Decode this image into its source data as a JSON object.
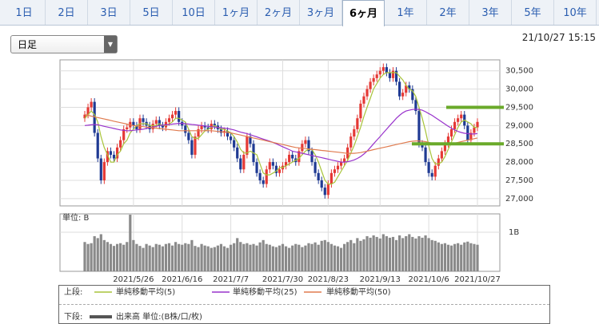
{
  "tabs": [
    "1日",
    "2日",
    "3日",
    "5日",
    "10日",
    "1ヶ月",
    "2ヶ月",
    "3ヶ月",
    "6ヶ月",
    "1年",
    "2年",
    "3年",
    "5年",
    "10年"
  ],
  "active_tab": 8,
  "period_select": "日足",
  "timestamp": "21/10/27 15:15",
  "legend": {
    "upper": "上段:",
    "lower": "下段:"
  },
  "chart_data": [
    {
      "type": "candlestick",
      "categories": [
        null,
        null,
        null,
        null,
        null,
        null,
        null,
        null,
        null,
        null,
        null,
        null,
        null,
        null,
        null,
        "2021/5/26",
        null,
        null,
        null,
        null,
        null,
        null,
        null,
        null,
        null,
        null,
        null,
        null,
        null,
        null,
        "2021/6/16",
        null,
        null,
        null,
        null,
        null,
        null,
        null,
        null,
        null,
        null,
        null,
        null,
        null,
        null,
        "2021/7/7",
        null,
        null,
        null,
        null,
        null,
        null,
        null,
        null,
        null,
        null,
        null,
        null,
        null,
        null,
        null,
        "2021/7/30",
        null,
        null,
        null,
        null,
        null,
        null,
        null,
        null,
        null,
        null,
        null,
        null,
        null,
        "2021/8/23",
        null,
        null,
        null,
        null,
        null,
        null,
        null,
        null,
        null,
        null,
        null,
        null,
        null,
        null,
        null,
        "2021/9/13",
        null,
        null,
        null,
        null,
        null,
        null,
        null,
        null,
        null,
        null,
        null,
        null,
        null,
        null,
        "2021/10/6",
        null,
        null,
        null,
        null,
        null,
        null,
        null,
        null,
        null,
        null,
        null,
        null,
        null,
        null,
        "2021/10/27"
      ],
      "open": [
        29200,
        29300,
        29500,
        29650,
        28800,
        28100,
        27500,
        28000,
        28300,
        28200,
        28100,
        28400,
        28600,
        28900,
        28950,
        29100,
        29000,
        28900,
        29200,
        29100,
        29000,
        28900,
        29050,
        29150,
        29000,
        28950,
        29100,
        29200,
        29300,
        29400,
        29100,
        29000,
        28800,
        28600,
        28200,
        28700,
        28900,
        29000,
        28950,
        28900,
        29050,
        29000,
        28900,
        28800,
        28850,
        28700,
        28600,
        28400,
        28100,
        27800,
        28200,
        28700,
        28500,
        28000,
        27700,
        27500,
        27400,
        27800,
        28000,
        27900,
        27700,
        27800,
        27900,
        28000,
        28200,
        28100,
        28000,
        28300,
        28500,
        28600,
        28300,
        28000,
        27700,
        27500,
        27300,
        27100,
        27400,
        27700,
        27800,
        27900,
        28000,
        28100,
        28400,
        28700,
        28900,
        29200,
        29600,
        29800,
        30000,
        30200,
        30300,
        30400,
        30500,
        30600,
        30450,
        30300,
        30500,
        30200,
        29800,
        29900,
        30100,
        30000,
        29700,
        29400,
        28500,
        28400,
        28000,
        27700,
        27600,
        27900,
        28100,
        28300,
        28500,
        28700,
        28900,
        29100,
        29200,
        29300,
        29000,
        28600,
        28800,
        28950
      ],
      "high": [
        29400,
        29600,
        29750,
        29750,
        28900,
        28200,
        28100,
        28400,
        28400,
        28300,
        28500,
        28700,
        29000,
        29050,
        29200,
        29200,
        29100,
        29300,
        29300,
        29200,
        29100,
        29150,
        29250,
        29250,
        29100,
        29200,
        29300,
        29400,
        29500,
        29500,
        29200,
        29100,
        28900,
        28700,
        28800,
        29000,
        29100,
        29100,
        29050,
        29150,
        29150,
        29100,
        29000,
        28950,
        28950,
        28800,
        28700,
        28500,
        28200,
        28300,
        28800,
        28800,
        28600,
        28100,
        27800,
        27600,
        27900,
        28100,
        28100,
        28000,
        27900,
        28000,
        28100,
        28300,
        28300,
        28200,
        28400,
        28600,
        28700,
        28700,
        28400,
        28100,
        27800,
        27600,
        27400,
        27500,
        27800,
        27900,
        28000,
        28100,
        28200,
        28500,
        28800,
        29000,
        29300,
        29700,
        29900,
        30100,
        30300,
        30400,
        30500,
        30600,
        30700,
        30700,
        30550,
        30600,
        30600,
        30300,
        30000,
        30200,
        30200,
        30100,
        29800,
        29500,
        28600,
        28500,
        28100,
        27800,
        28000,
        28200,
        28400,
        28600,
        28800,
        29000,
        29200,
        29300,
        29400,
        29400,
        29100,
        28900,
        29050,
        29200
      ],
      "low": [
        29100,
        29200,
        29400,
        28700,
        28000,
        27400,
        27400,
        27900,
        28100,
        28000,
        28000,
        28300,
        28500,
        28800,
        28850,
        28900,
        28800,
        28800,
        29000,
        28900,
        28800,
        28800,
        28950,
        28900,
        28850,
        28850,
        29000,
        29100,
        29200,
        29000,
        28900,
        28700,
        28500,
        28100,
        28100,
        28600,
        28800,
        28850,
        28800,
        28800,
        28900,
        28800,
        28700,
        28700,
        28600,
        28500,
        28300,
        28000,
        27700,
        27700,
        28100,
        28400,
        27900,
        27600,
        27400,
        27300,
        27300,
        27700,
        27800,
        27600,
        27600,
        27700,
        27800,
        27900,
        28000,
        27900,
        27900,
        28200,
        28400,
        28200,
        27900,
        27600,
        27400,
        27200,
        27000,
        27000,
        27300,
        27600,
        27700,
        27800,
        27900,
        28000,
        28300,
        28600,
        28800,
        29100,
        29500,
        29700,
        29900,
        30100,
        30200,
        30300,
        30400,
        30350,
        30200,
        30200,
        30100,
        29700,
        29700,
        29800,
        29900,
        29600,
        29300,
        28400,
        28300,
        27900,
        27600,
        27500,
        27500,
        27800,
        28000,
        28200,
        28400,
        28600,
        28800,
        29000,
        29100,
        28900,
        28500,
        28500,
        28700,
        28850
      ],
      "close": [
        29300,
        29500,
        29650,
        28800,
        28100,
        27500,
        28000,
        28300,
        28200,
        28100,
        28400,
        28600,
        28900,
        28950,
        29100,
        29000,
        28900,
        29200,
        29100,
        29000,
        28900,
        29050,
        29150,
        29000,
        28950,
        29100,
        29200,
        29300,
        29400,
        29100,
        29000,
        28800,
        28600,
        28200,
        28700,
        28900,
        29000,
        28950,
        28900,
        29050,
        29000,
        28900,
        28800,
        28850,
        28700,
        28600,
        28400,
        28100,
        27800,
        28200,
        28700,
        28500,
        28000,
        27700,
        27500,
        27400,
        27800,
        28000,
        27900,
        27700,
        27800,
        27900,
        28000,
        28200,
        28100,
        28000,
        28300,
        28500,
        28600,
        28300,
        28000,
        27700,
        27500,
        27300,
        27100,
        27400,
        27700,
        27800,
        27900,
        28000,
        28100,
        28400,
        28700,
        28900,
        29200,
        29600,
        29800,
        30000,
        30200,
        30300,
        30400,
        30500,
        30600,
        30450,
        30300,
        30500,
        30200,
        29800,
        29900,
        30100,
        30000,
        29700,
        29400,
        28500,
        28400,
        28000,
        27700,
        27600,
        27900,
        28100,
        28300,
        28500,
        28700,
        28900,
        29100,
        29200,
        29300,
        29000,
        28600,
        28800,
        28950,
        29100
      ],
      "up_color": "#e53935",
      "down_color": "#1f3a93",
      "series": [
        {
          "name": "単純移動平均(5)",
          "color": "#a8c43a",
          "values": [
            29200,
            29300,
            29400,
            29300,
            29100,
            28700,
            28400,
            28200,
            28000,
            28000,
            28200,
            28300,
            28500,
            28600,
            28800,
            28900,
            29000,
            29050,
            29050,
            29050,
            29000,
            29000,
            29000,
            29050,
            29000,
            29000,
            29050,
            29100,
            29200,
            29200,
            29150,
            29100,
            28900,
            28700,
            28650,
            28650,
            28750,
            28850,
            28900,
            28950,
            29000,
            28950,
            28900,
            28900,
            28850,
            28800,
            28700,
            28550,
            28350,
            28250,
            28250,
            28300,
            28250,
            28200,
            27950,
            27700,
            27650,
            27650,
            27700,
            27750,
            27850,
            27850,
            27900,
            27950,
            28000,
            28050,
            28100,
            28200,
            28300,
            28350,
            28350,
            28200,
            28000,
            27750,
            27500,
            27400,
            27400,
            27450,
            27600,
            27750,
            27900,
            28050,
            28250,
            28450,
            28700,
            28950,
            29250,
            29500,
            29750,
            30000,
            30150,
            30300,
            30400,
            30450,
            30450,
            30450,
            30450,
            30350,
            30250,
            30100,
            30000,
            29950,
            29800,
            29500,
            29200,
            28850,
            28450,
            28100,
            27950,
            27950,
            28000,
            28150,
            28350,
            28550,
            28750,
            28950,
            29100,
            29150,
            29100,
            29050,
            28950,
            28950
          ]
        },
        {
          "name": "単純移動平均(25)",
          "color": "#9933cc",
          "values": [
            29000,
            29010,
            29020,
            29030,
            29020,
            29000,
            28980,
            28960,
            28940,
            28920,
            28900,
            28880,
            28870,
            28860,
            28860,
            28870,
            28880,
            28890,
            28900,
            28920,
            28940,
            28960,
            28980,
            29000,
            29010,
            29020,
            29030,
            29040,
            29050,
            29060,
            29060,
            29050,
            29040,
            29030,
            29020,
            29010,
            29000,
            28990,
            28980,
            28970,
            28960,
            28950,
            28940,
            28930,
            28920,
            28900,
            28880,
            28850,
            28820,
            28800,
            28780,
            28750,
            28720,
            28690,
            28660,
            28630,
            28600,
            28570,
            28540,
            28500,
            28460,
            28420,
            28380,
            28340,
            28300,
            28280,
            28260,
            28240,
            28220,
            28200,
            28180,
            28160,
            28140,
            28120,
            28100,
            28080,
            28060,
            28040,
            28020,
            28000,
            28000,
            28010,
            28030,
            28060,
            28100,
            28150,
            28220,
            28300,
            28400,
            28500,
            28600,
            28700,
            28800,
            28900,
            29000,
            29100,
            29200,
            29280,
            29350,
            29400,
            29420,
            29440,
            29450,
            29440,
            29420,
            29380,
            29330,
            29280,
            29220,
            29160,
            29100,
            29040,
            28980,
            28930,
            28880,
            28840,
            28810,
            28790,
            28780,
            28770,
            28770,
            28780
          ]
        },
        {
          "name": "単純移動平均(50)",
          "color": "#e07b4f",
          "values": [
            29300,
            29280,
            29260,
            29240,
            29220,
            29200,
            29180,
            29160,
            29140,
            29120,
            29100,
            29080,
            29060,
            29040,
            29020,
            29000,
            28990,
            28980,
            28970,
            28960,
            28950,
            28940,
            28930,
            28920,
            28910,
            28900,
            28890,
            28880,
            28870,
            28860,
            28860,
            28860,
            28860,
            28860,
            28860,
            28860,
            28860,
            28860,
            28860,
            28860,
            28850,
            28840,
            28830,
            28820,
            28810,
            28800,
            28780,
            28760,
            28740,
            28720,
            28700,
            28680,
            28660,
            28640,
            28620,
            28600,
            28580,
            28560,
            28540,
            28520,
            28500,
            28480,
            28460,
            28440,
            28420,
            28400,
            28390,
            28380,
            28370,
            28360,
            28350,
            28340,
            28330,
            28320,
            28310,
            28300,
            28290,
            28280,
            28270,
            28260,
            28250,
            28240,
            28240,
            28240,
            28250,
            28260,
            28280,
            28300,
            28320,
            28340,
            28360,
            28380,
            28400,
            28420,
            28440,
            28460,
            28480,
            28500,
            28520,
            28540,
            28560,
            28570,
            28580,
            28580,
            28570,
            28560,
            28540,
            28520,
            28500,
            28490,
            28480,
            28480,
            28490,
            28500,
            28520,
            28540,
            28560,
            28580,
            28600,
            28620,
            28640,
            28660
          ]
        }
      ],
      "hlines": [
        29500,
        28500
      ],
      "hline_color": "#6aaa2a",
      "ylim": [
        26800,
        30800
      ],
      "yticks": [
        {
          "value": 27000,
          "label": "27,000"
        },
        {
          "value": 27500,
          "label": "27,500"
        },
        {
          "value": 28000,
          "label": "28,000"
        },
        {
          "value": 28500,
          "label": "28,500"
        },
        {
          "value": 29000,
          "label": "29,000"
        },
        {
          "value": 29500,
          "label": "29,500"
        },
        {
          "value": 30000,
          "label": "30,000"
        },
        {
          "value": 30500,
          "label": "30,500"
        }
      ],
      "grid": true
    },
    {
      "type": "bar",
      "unit_label": "単位: B",
      "name": "出来高 単位:(B株/口/枚)",
      "color": "#8a8a8a",
      "legend_color": "#555555",
      "values": [
        0.75,
        0.7,
        0.72,
        0.9,
        0.85,
        0.95,
        0.8,
        0.75,
        0.7,
        0.65,
        0.7,
        0.72,
        0.68,
        0.75,
        1.45,
        0.8,
        0.7,
        0.65,
        0.6,
        0.7,
        0.66,
        0.62,
        0.7,
        0.68,
        0.64,
        0.7,
        0.72,
        0.66,
        0.75,
        0.7,
        0.68,
        0.72,
        0.7,
        0.8,
        0.65,
        0.62,
        0.7,
        0.66,
        0.64,
        0.6,
        0.62,
        0.66,
        0.7,
        0.64,
        0.6,
        0.68,
        0.72,
        0.85,
        0.75,
        0.7,
        0.72,
        0.68,
        0.7,
        0.66,
        0.74,
        0.8,
        0.7,
        0.68,
        0.64,
        0.62,
        0.66,
        0.7,
        0.64,
        0.6,
        0.66,
        0.7,
        0.68,
        0.62,
        0.66,
        0.72,
        0.7,
        0.74,
        0.68,
        0.78,
        0.8,
        0.75,
        0.7,
        0.66,
        0.64,
        0.6,
        0.7,
        0.75,
        0.8,
        0.72,
        0.85,
        0.78,
        0.82,
        0.9,
        0.86,
        0.92,
        0.88,
        0.84,
        0.95,
        0.9,
        0.86,
        0.88,
        0.8,
        0.92,
        0.85,
        0.9,
        0.95,
        0.88,
        0.84,
        0.9,
        0.86,
        0.92,
        0.85,
        0.8,
        0.78,
        0.74,
        0.7,
        0.72,
        0.68,
        0.66,
        0.7,
        0.72,
        0.68,
        0.74,
        0.76,
        0.72,
        0.7,
        0.68
      ],
      "ylim": [
        0,
        1.47
      ],
      "yticks": [
        {
          "value": 1,
          "label": "1B"
        }
      ],
      "grid": true
    }
  ]
}
